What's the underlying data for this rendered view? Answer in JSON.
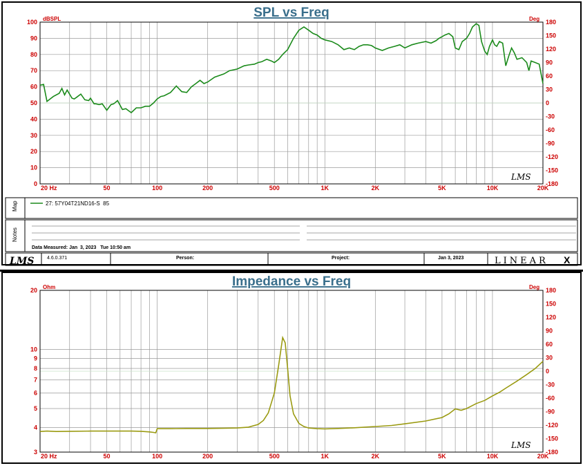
{
  "spl": {
    "title": "SPL vs Freq",
    "y_unit_left": "dBSPL",
    "y_unit_right": "Deg",
    "lms_mark": "LMS",
    "chart_data": {
      "type": "line",
      "title": "SPL vs Freq",
      "xscale": "log",
      "xlim": [
        20,
        20000
      ],
      "ylim": [
        0,
        100
      ],
      "y2lim": [
        -180,
        180
      ],
      "grid": true,
      "x_tick_labels": [
        "20 Hz",
        "50",
        "100",
        "200",
        "500",
        "1K",
        "2K",
        "5K",
        "10K",
        "20K"
      ],
      "x_tick_values": [
        20,
        50,
        100,
        200,
        500,
        1000,
        2000,
        5000,
        10000,
        20000
      ],
      "y_ticks": [
        0,
        10,
        20,
        30,
        40,
        50,
        60,
        70,
        80,
        90,
        100
      ],
      "y2_ticks": [
        -180,
        -150,
        -120,
        -90,
        -60,
        -30,
        0,
        30,
        60,
        90,
        120,
        150,
        180
      ],
      "series": [
        {
          "name": "27: 57Y04T21ND16-S 85",
          "color": "#1a8a1a",
          "x": [
            20,
            21,
            22,
            24,
            26,
            27,
            28,
            29,
            31,
            32,
            33,
            35,
            37,
            39,
            40,
            42,
            43,
            45,
            47,
            50,
            53,
            55,
            58,
            62,
            65,
            70,
            75,
            80,
            85,
            90,
            95,
            100,
            105,
            110,
            120,
            130,
            140,
            150,
            160,
            170,
            180,
            190,
            200,
            220,
            250,
            270,
            300,
            330,
            350,
            380,
            400,
            420,
            450,
            480,
            500,
            530,
            560,
            600,
            650,
            700,
            750,
            800,
            850,
            900,
            950,
            1000,
            1100,
            1200,
            1300,
            1400,
            1500,
            1600,
            1700,
            1800,
            1900,
            2000,
            2200,
            2400,
            2600,
            2800,
            3000,
            3300,
            3600,
            4000,
            4300,
            4600,
            4800,
            5000,
            5200,
            5500,
            5800,
            6000,
            6300,
            6600,
            7000,
            7300,
            7600,
            8000,
            8300,
            8600,
            9000,
            9300,
            9600,
            10000,
            10300,
            10600,
            11000,
            11500,
            12000,
            12500,
            13000,
            13500,
            14000,
            15000,
            16000,
            16500,
            17000,
            18000,
            19000,
            20000
          ],
          "y": [
            61,
            61.5,
            51,
            54,
            56,
            59,
            55,
            58,
            53,
            52.5,
            53.5,
            55.5,
            52,
            51.5,
            53,
            49.5,
            49.5,
            49,
            49.5,
            45.5,
            49,
            49.5,
            51.5,
            46,
            46.5,
            44,
            47,
            47,
            48,
            48,
            50,
            52.5,
            54,
            54.5,
            56.5,
            60.5,
            57,
            56.5,
            60,
            62,
            64,
            62,
            63,
            66,
            68,
            70,
            71,
            73,
            73.5,
            74,
            75,
            75.5,
            77,
            76,
            75,
            77,
            80,
            83,
            90,
            95,
            97,
            95,
            93,
            92,
            90,
            89,
            88,
            86,
            83,
            84,
            83,
            85,
            86,
            86,
            85.5,
            84,
            82.5,
            84,
            85,
            86,
            84,
            86,
            87,
            88,
            87,
            88.5,
            90,
            91,
            92,
            93,
            91,
            84,
            83,
            88,
            90,
            93,
            97,
            99,
            98,
            88,
            82,
            80,
            85,
            89,
            86,
            85,
            88,
            87,
            73,
            79,
            84,
            81,
            77,
            78,
            75,
            70,
            76,
            75,
            74,
            62
          ]
        }
      ]
    },
    "legend": {
      "side_label": "Map",
      "entry": "27: 57Y04T21ND16-S  85"
    },
    "notes": {
      "side_label": "Notes",
      "measured": "Data Measured: Jan  3, 2023   Tue 10:50 am"
    },
    "footer": {
      "logo": "LMS",
      "version": "4.6.0.371",
      "person_label": "Person:",
      "project_label": "Project:",
      "date": "Jan  3, 2023",
      "brand": "LINEAR",
      "brand_mark": "X"
    }
  },
  "impedance": {
    "title": "Impedance vs Freq",
    "y_unit_left": "Ohm",
    "y_unit_right": "Deg",
    "lms_mark": "LMS",
    "chart_data": {
      "type": "line",
      "title": "Impedance vs Freq",
      "xscale": "log",
      "yscale": "log",
      "xlim": [
        20,
        20000
      ],
      "ylim": [
        3,
        20
      ],
      "y2lim": [
        -180,
        180
      ],
      "grid": true,
      "x_tick_labels": [
        "20 Hz",
        "50",
        "100",
        "200",
        "500",
        "1K",
        "2K",
        "5K",
        "10K",
        "20K"
      ],
      "x_tick_values": [
        20,
        50,
        100,
        200,
        500,
        1000,
        2000,
        5000,
        10000,
        20000
      ],
      "y_tick_labels": [
        "3",
        "4",
        "5",
        "6",
        "7",
        "8",
        "9",
        "10",
        "20"
      ],
      "y_tick_values": [
        3,
        4,
        5,
        6,
        7,
        8,
        9,
        10,
        20
      ],
      "y2_ticks": [
        -180,
        -150,
        -120,
        -90,
        -60,
        -30,
        0,
        30,
        60,
        90,
        120,
        150,
        180
      ],
      "series": [
        {
          "name": "",
          "color": "#9a9a10",
          "x": [
            20,
            22,
            25,
            30,
            40,
            50,
            60,
            70,
            80,
            90,
            95,
            98,
            100,
            120,
            150,
            200,
            250,
            300,
            350,
            400,
            430,
            460,
            500,
            530,
            560,
            580,
            600,
            620,
            650,
            700,
            750,
            800,
            900,
            1000,
            1200,
            1500,
            2000,
            2500,
            3000,
            4000,
            5000,
            5500,
            6000,
            6500,
            7000,
            7500,
            8000,
            9000,
            10000,
            11000,
            12000,
            14000,
            16000,
            18000,
            20000
          ],
          "y": [
            3.82,
            3.84,
            3.82,
            3.83,
            3.84,
            3.84,
            3.84,
            3.84,
            3.83,
            3.8,
            3.78,
            3.76,
            3.95,
            3.95,
            3.96,
            3.96,
            3.97,
            3.98,
            4.02,
            4.15,
            4.35,
            4.75,
            6.0,
            8.3,
            11.5,
            10.8,
            8.0,
            5.8,
            4.7,
            4.2,
            4.05,
            3.98,
            3.95,
            3.94,
            3.96,
            3.99,
            4.05,
            4.1,
            4.18,
            4.32,
            4.5,
            4.7,
            4.98,
            4.9,
            5.0,
            5.15,
            5.3,
            5.5,
            5.8,
            6.05,
            6.35,
            6.9,
            7.45,
            8.0,
            8.7
          ]
        }
      ]
    }
  }
}
